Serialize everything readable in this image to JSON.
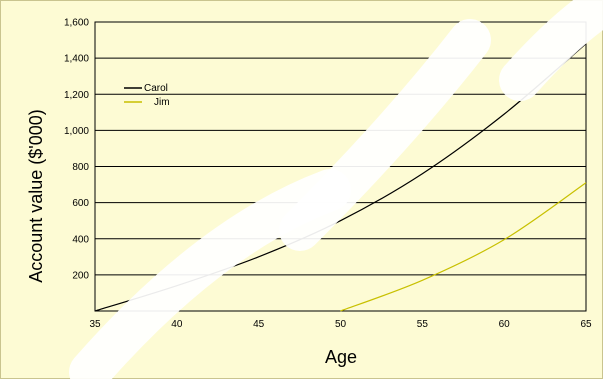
{
  "chart_data": {
    "type": "line",
    "title": "",
    "xlabel": "Age",
    "ylabel": "Account value  ($'000)",
    "xlim": [
      35,
      65
    ],
    "ylim": [
      0,
      1600
    ],
    "x_ticks": [
      35,
      40,
      45,
      50,
      55,
      60,
      65
    ],
    "y_ticks": [
      200,
      400,
      600,
      800,
      1000,
      1200,
      1400,
      1600
    ],
    "y_tick_labels": [
      "200",
      "400",
      "600",
      "800",
      "1,000",
      "1,200",
      "1,400",
      "1,600"
    ],
    "grid": "horizontal",
    "legend_placement": "top-left",
    "series": [
      {
        "name": "Carol",
        "color": "#000000",
        "x": [
          35,
          40,
          45,
          50,
          55,
          60,
          65
        ],
        "y": [
          0,
          140,
          300,
          500,
          760,
          1090,
          1480
        ]
      },
      {
        "name": "Jim",
        "color": "#c8c000",
        "x": [
          50,
          55,
          60,
          65
        ],
        "y": [
          0,
          170,
          395,
          710
        ]
      }
    ]
  }
}
